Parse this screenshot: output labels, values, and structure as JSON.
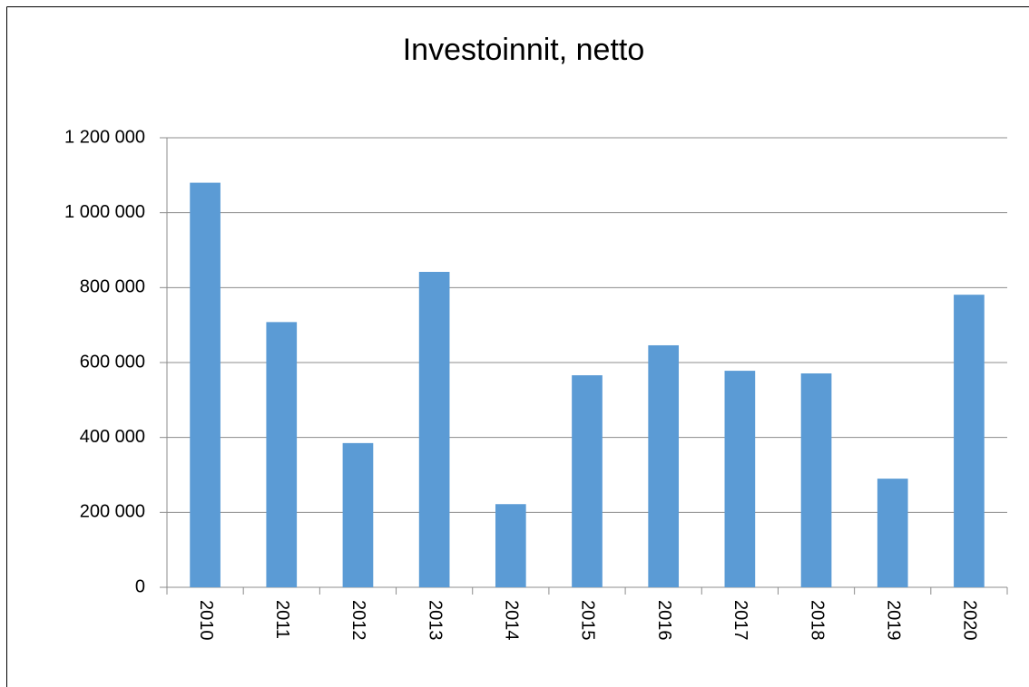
{
  "chart_data": {
    "type": "bar",
    "title": "Investoinnit, netto",
    "categories": [
      "2010",
      "2011",
      "2012",
      "2013",
      "2014",
      "2015",
      "2016",
      "2017",
      "2018",
      "2019",
      "2020"
    ],
    "values": [
      1080000,
      708000,
      385000,
      842000,
      222000,
      566000,
      646000,
      578000,
      571000,
      290000,
      781000
    ],
    "color": "#5b9bd5",
    "ylim": [
      0,
      1200000
    ],
    "yticks": [
      0,
      {
        "value": 200000,
        "label": "200 000"
      },
      {
        "value": 400000,
        "label": "400 000"
      },
      {
        "value": 600000,
        "label": "600 000"
      },
      {
        "value": 800000,
        "label": "800 000"
      },
      {
        "value": 1000000,
        "label": "1 000 000"
      },
      {
        "value": 1200000,
        "label": "1 200 000"
      }
    ],
    "grid": true
  }
}
